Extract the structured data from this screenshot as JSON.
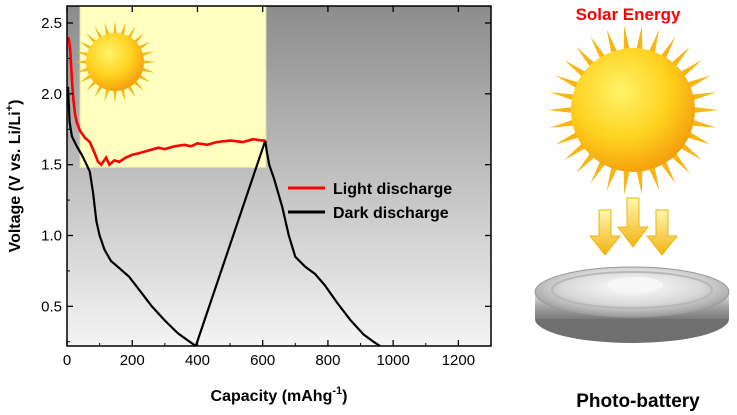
{
  "chart_data": {
    "type": "line",
    "xlabel": "Capacity (mAhg",
    "xlabel_sup": "-1",
    "ylabel_main": "Voltage (V vs. Li/Li",
    "ylabel_sup": "+",
    "xlim": [
      0,
      1300
    ],
    "ylim": [
      0.22,
      2.62
    ],
    "xticks": [
      0,
      200,
      400,
      600,
      800,
      1000,
      1200
    ],
    "yticks": [
      0.5,
      1.0,
      1.5,
      2.0,
      2.5
    ],
    "ytick_labels": [
      "0.5",
      "1.0",
      "1.5",
      "2.0",
      "2.5"
    ],
    "legend": {
      "position": "middle-right",
      "items": [
        {
          "label": "Light discharge",
          "color": "#ff0000"
        },
        {
          "label": "Dark discharge",
          "color": "#000000"
        }
      ]
    },
    "light_window": {
      "x_start": 40,
      "x_end": 610,
      "y_from": 1.48,
      "y_to": 2.62,
      "color": "#ffffc0"
    },
    "series": [
      {
        "name": "Light discharge",
        "color": "#ff0000",
        "points": [
          [
            5,
            2.4
          ],
          [
            10,
            2.3
          ],
          [
            15,
            2.1
          ],
          [
            20,
            1.95
          ],
          [
            25,
            1.85
          ],
          [
            30,
            1.8
          ],
          [
            40,
            1.74
          ],
          [
            55,
            1.69
          ],
          [
            70,
            1.66
          ],
          [
            85,
            1.58
          ],
          [
            95,
            1.52
          ],
          [
            105,
            1.5
          ],
          [
            120,
            1.55
          ],
          [
            130,
            1.5
          ],
          [
            145,
            1.53
          ],
          [
            160,
            1.52
          ],
          [
            180,
            1.55
          ],
          [
            200,
            1.57
          ],
          [
            220,
            1.58
          ],
          [
            250,
            1.6
          ],
          [
            280,
            1.62
          ],
          [
            300,
            1.61
          ],
          [
            330,
            1.63
          ],
          [
            360,
            1.64
          ],
          [
            380,
            1.63
          ],
          [
            400,
            1.65
          ],
          [
            430,
            1.64
          ],
          [
            460,
            1.66
          ],
          [
            500,
            1.67
          ],
          [
            540,
            1.66
          ],
          [
            570,
            1.68
          ],
          [
            600,
            1.67
          ],
          [
            608,
            1.67
          ]
        ]
      },
      {
        "name": "Dark discharge",
        "color": "#000000",
        "points": [
          [
            3,
            2.05
          ],
          [
            8,
            1.8
          ],
          [
            15,
            1.7
          ],
          [
            30,
            1.63
          ],
          [
            45,
            1.57
          ],
          [
            60,
            1.5
          ],
          [
            70,
            1.45
          ],
          [
            80,
            1.3
          ],
          [
            90,
            1.1
          ],
          [
            100,
            1.0
          ],
          [
            115,
            0.9
          ],
          [
            135,
            0.82
          ],
          [
            160,
            0.77
          ],
          [
            190,
            0.71
          ],
          [
            220,
            0.62
          ],
          [
            260,
            0.5
          ],
          [
            300,
            0.4
          ],
          [
            340,
            0.31
          ],
          [
            370,
            0.26
          ],
          [
            395,
            0.22
          ],
          [
            608,
            1.67
          ],
          [
            612,
            1.6
          ],
          [
            620,
            1.5
          ],
          [
            635,
            1.4
          ],
          [
            660,
            1.2
          ],
          [
            680,
            1.0
          ],
          [
            700,
            0.85
          ],
          [
            730,
            0.78
          ],
          [
            760,
            0.73
          ],
          [
            790,
            0.65
          ],
          [
            830,
            0.52
          ],
          [
            870,
            0.4
          ],
          [
            910,
            0.3
          ],
          [
            940,
            0.25
          ],
          [
            960,
            0.22
          ]
        ]
      }
    ]
  },
  "illustration": {
    "title": "Solar Energy",
    "title_color": "#ff0000",
    "caption": "Photo-battery",
    "icons": [
      "sun-icon",
      "arrow-down-icon",
      "coin-cell-battery-icon",
      "moon-icon"
    ]
  }
}
